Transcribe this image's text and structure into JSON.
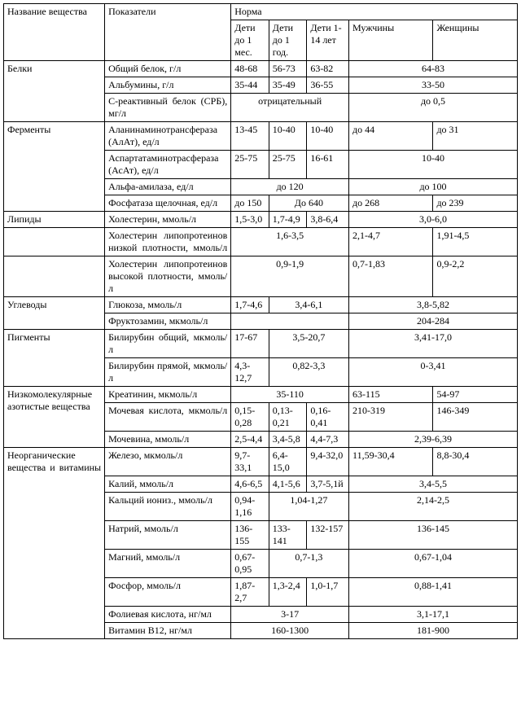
{
  "hdr": {
    "substance": "Название вещества",
    "indicator": "Показатели",
    "norm": "Норма",
    "kids1m": "Дети до 1 мес.",
    "kids1y": "Дети до 1 год.",
    "kids14": "Дети 1-14 лет",
    "men": "Мужчины",
    "women": "Женщины"
  },
  "g": {
    "proteins": "Белки",
    "enzymes": "Ферменты",
    "lipids": "Липиды",
    "carbs": "Углеводы",
    "pigments": "Пигменты",
    "lowmol": "Низкомолекулярные азотистые вещества",
    "inorg": "Неорганические вещества и витамины"
  },
  "r": {
    "totalProtein": {
      "name": "Общий белок, г/л",
      "c1": "48-68",
      "c2": "56-73",
      "c3": "63-82",
      "adults": "64-83"
    },
    "albumin": {
      "name": "Альбумины, г/л",
      "c1": "35-44",
      "c2": "35-49",
      "c3": "36-55",
      "adults": "33-50"
    },
    "crp": {
      "name": "С-реактивный белок (СРБ), мг/л",
      "kids": "отрицательный",
      "adults": "до 0,5"
    },
    "alat": {
      "name": "Аланинаминотрансфераза (АлАт), ед/л",
      "c1": "13-45",
      "c2": "10-40",
      "c3": "10-40",
      "men": "до 44",
      "women": "до 31"
    },
    "asat": {
      "name": "Аспартатаминотрасфераза (АсАт), ед/л",
      "c1": "25-75",
      "c2": "25-75",
      "c3": "16-61",
      "adults": "10-40"
    },
    "amylase": {
      "name": "Альфа-амилаза, ед/л",
      "kids": "до 120",
      "adults": "до 100"
    },
    "alp": {
      "name": "Фосфатаза щелочная, ед/л",
      "c1": "до 150",
      "c23": "До 640",
      "men": "до 268",
      "women": "до 239"
    },
    "chol": {
      "name": "Холестерин, ммоль/л",
      "c1": "1,5-3,0",
      "c2": "1,7-4,9",
      "c3": "3,8-6,4",
      "adults": "3,0-6,0"
    },
    "ldl": {
      "name": "Холестерин липопротеинов низкой плотности, ммоль/л",
      "kids": "1,6-3,5",
      "men": "2,1-4,7",
      "women": "1,91-4,5"
    },
    "hdl": {
      "name": "Холестерин липопротеинов высокой плотности, ммоль/л",
      "kids": "0,9-1,9",
      "men": "0,7-1,83",
      "women": "0,9-2,2"
    },
    "glucose": {
      "name": "Глюкоза, ммоль/л",
      "c1": "1,7-4,6",
      "c23": "3,4-6,1",
      "adults": "3,8-5,82"
    },
    "fructo": {
      "name": "Фруктозамин, мкмоль/л",
      "adults": "204-284"
    },
    "biliTotal": {
      "name": "Билирубин общий, мкмоль/л",
      "c1": "17-67",
      "c23": "3,5-20,7",
      "adults": "3,41-17,0"
    },
    "biliDirect": {
      "name": "Билирубин прямой, мкмоль/л",
      "c1": "4,3-12,7",
      "c23": "0,82-3,3",
      "adults": "0-3,41"
    },
    "creat": {
      "name": "Креатинин, мкмоль/л",
      "kids": "35-110",
      "men": "63-115",
      "women": "54-97"
    },
    "uric": {
      "name": "Мочевая кислота, мкмоль/л",
      "c1": "0,15-0,28",
      "c2": "0,13-0,21",
      "c3": "0,16-0,41",
      "men": "210-319",
      "women": "146-349"
    },
    "urea": {
      "name": "Мочевина, ммоль/л",
      "c1": "2,5-4,4",
      "c2": "3,4-5,8",
      "c3": "4,4-7,3",
      "adults": "2,39-6,39"
    },
    "iron": {
      "name": "Железо, мкмоль/л",
      "c1": "9,7-33,1",
      "c2": "6,4-15,0",
      "c3": "9,4-32,0",
      "men": "11,59-30,4",
      "women": "8,8-30,4"
    },
    "potassium": {
      "name": "Калий, ммоль/л",
      "c1": "4,6-6,5",
      "c2": "4,1-5,6",
      "c3": "3,7-5,1й",
      "adults": "3,4-5,5"
    },
    "calcium": {
      "name": "Кальций иониз., ммоль/л",
      "c1": "0,94-1,16",
      "c23": "1,04-1,27",
      "adults": "2,14-2,5"
    },
    "sodium": {
      "name": "Натрий, ммоль/л",
      "c1": "136-155",
      "c2": "133-141",
      "c3": "132-157",
      "adults": "136-145"
    },
    "magnesium": {
      "name": "Магний, ммоль/л",
      "c1": "0,67-0,95",
      "c23": "0,7-1,3",
      "adults": "0,67-1,04"
    },
    "phosphorus": {
      "name": "Фосфор, ммоль/л",
      "c1": "1,87-2,7",
      "c2": "1,3-2,4",
      "c3": "1,0-1,7",
      "adults": "0,88-1,41"
    },
    "folic": {
      "name": "Фолиевая кислота, нг/мл",
      "kids": "3-17",
      "adults": "3,1-17,1"
    },
    "b12": {
      "name": "Витамин B12, нг/мл",
      "kids": "160-1300",
      "adults": "181-900"
    }
  }
}
